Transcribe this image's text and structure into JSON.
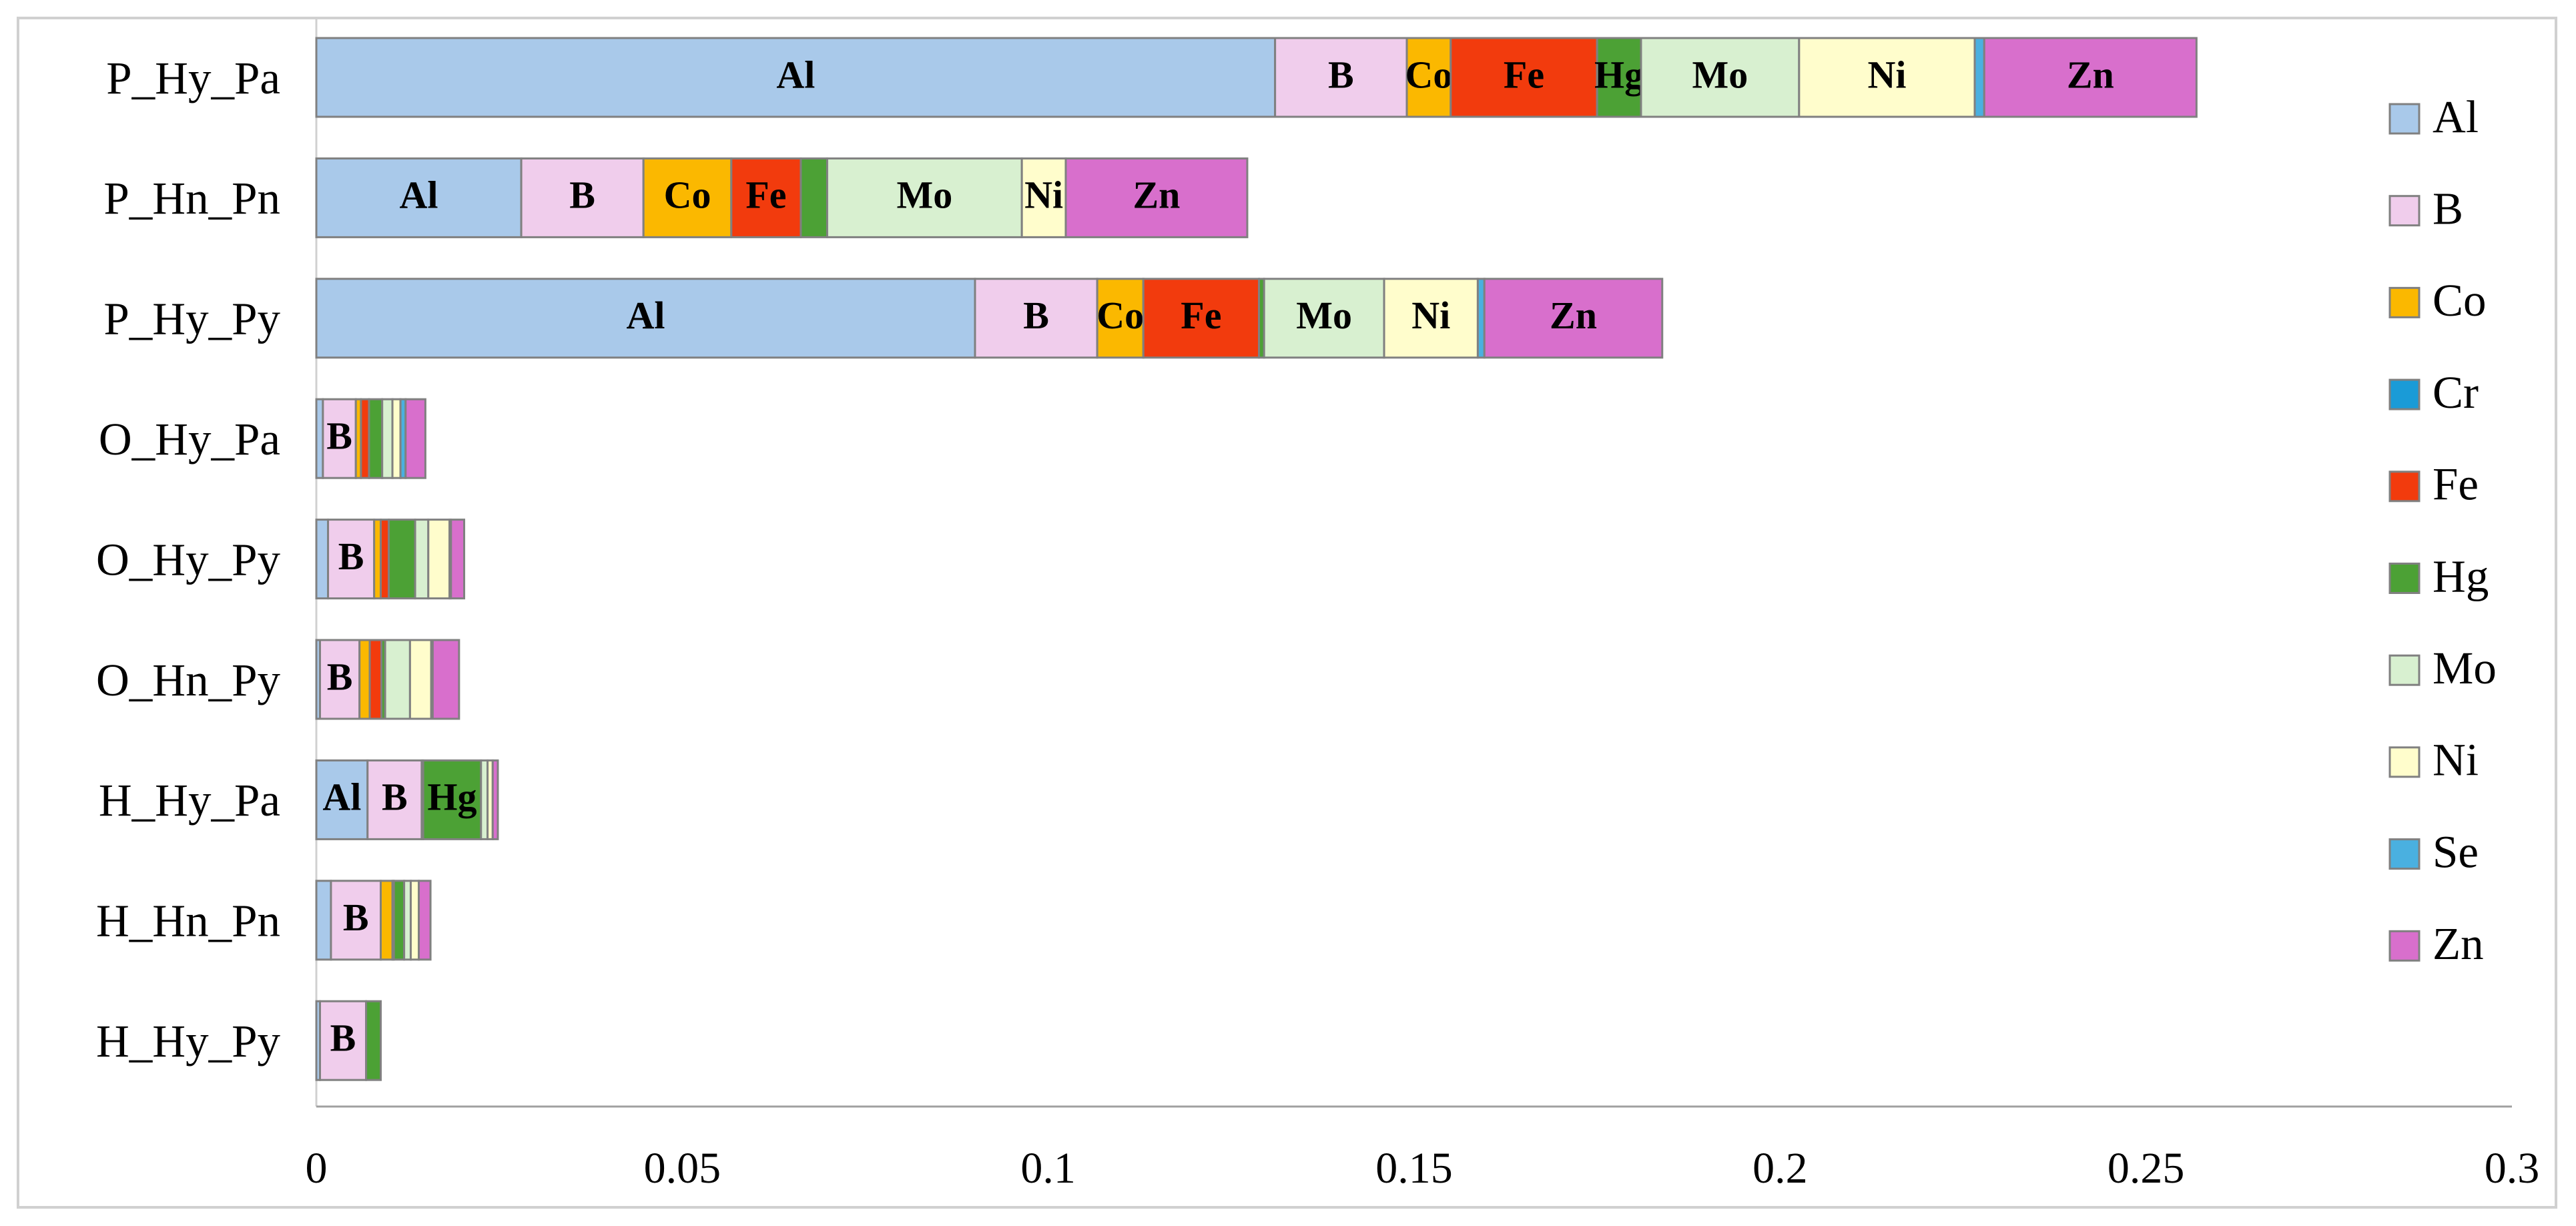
{
  "chart_data": {
    "type": "stacked-bar-horizontal",
    "categories": [
      "P_Hy_Pa",
      "P_Hn_Pn",
      "P_Hy_Py",
      "O_Hy_Pa",
      "O_Hy_Py",
      "O_Hn_Py",
      "H_Hy_Pa",
      "H_Hn_Pn",
      "H_Hy_Py"
    ],
    "series": [
      {
        "name": "Al",
        "color": "#a9c9ea",
        "values": [
          0.131,
          0.028,
          0.09,
          0.0009,
          0.0016,
          0.0005,
          0.007,
          0.002,
          0.0005
        ]
      },
      {
        "name": "B",
        "color": "#f0cdec",
        "values": [
          0.018,
          0.0167,
          0.0167,
          0.0045,
          0.0063,
          0.0054,
          0.0074,
          0.0068,
          0.0063
        ]
      },
      {
        "name": "Co",
        "color": "#fbb800",
        "values": [
          0.006,
          0.012,
          0.0063,
          0.0007,
          0.0009,
          0.0014,
          0.0002,
          0.0016,
          0
        ]
      },
      {
        "name": "Cr",
        "color": "#1a9bd7",
        "values": [
          0,
          0,
          0,
          0,
          0,
          0,
          0,
          0,
          0
        ]
      },
      {
        "name": "Fe",
        "color": "#f23b0d",
        "values": [
          0.02,
          0.0095,
          0.0158,
          0.0011,
          0.0011,
          0.0016,
          0,
          0.0002,
          0
        ]
      },
      {
        "name": "Hg",
        "color": "#4ca135",
        "values": [
          0.006,
          0.0036,
          0.0007,
          0.0018,
          0.0036,
          0.0005,
          0.0079,
          0.0014,
          0.002
        ]
      },
      {
        "name": "Mo",
        "color": "#d8f0d0",
        "values": [
          0.0216,
          0.0266,
          0.0164,
          0.0014,
          0.0018,
          0.0034,
          0.0009,
          0.0009,
          0
        ]
      },
      {
        "name": "Ni",
        "color": "#fffdcc",
        "values": [
          0.024,
          0.006,
          0.0128,
          0.0011,
          0.0029,
          0.0029,
          0.0007,
          0.0011,
          0
        ]
      },
      {
        "name": "Se",
        "color": "#4ab0e0",
        "values": [
          0.0013,
          0,
          0.0009,
          0.0007,
          0.0002,
          0.0002,
          0,
          0,
          0
        ]
      },
      {
        "name": "Zn",
        "color": "#d86fcc",
        "values": [
          0.029,
          0.0248,
          0.0243,
          0.0027,
          0.0018,
          0.0036,
          0.0007,
          0.0016,
          0
        ]
      }
    ],
    "xlim": [
      0,
      0.3
    ],
    "xticks": [
      0,
      0.05,
      0.1,
      0.15,
      0.2,
      0.25,
      0.3
    ],
    "grid": false,
    "legend": "right"
  }
}
